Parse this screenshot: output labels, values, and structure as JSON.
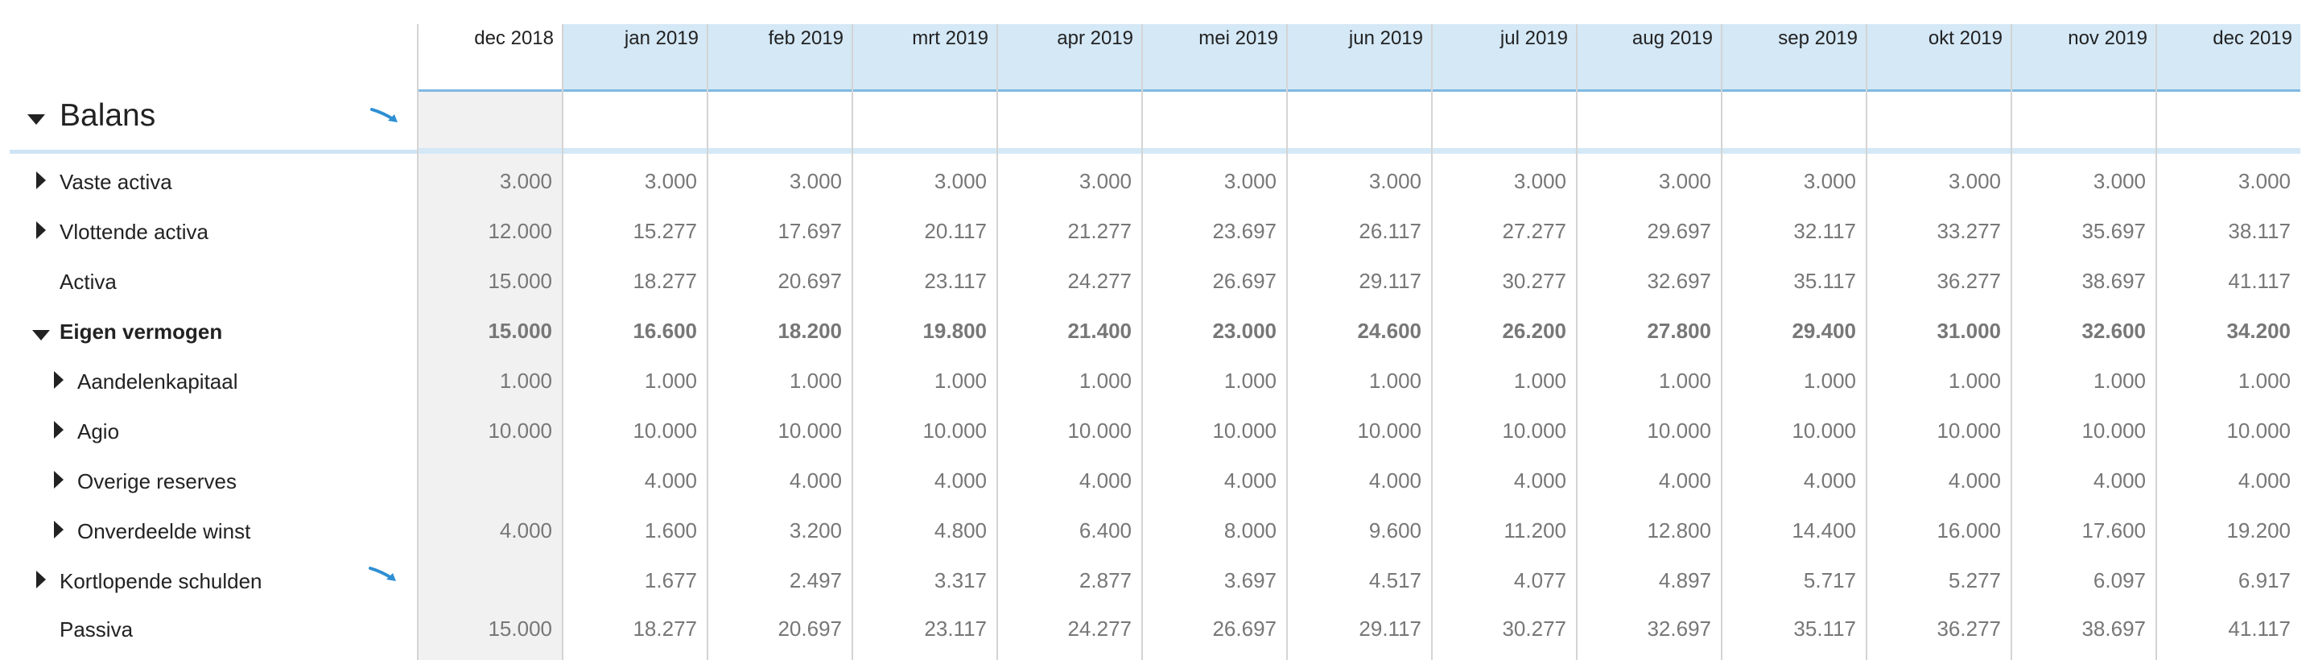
{
  "section": {
    "title": "Balans"
  },
  "months": [
    "dec 2018",
    "jan 2019",
    "feb 2019",
    "mrt 2019",
    "apr 2019",
    "mei 2019",
    "jun 2019",
    "jul 2019",
    "aug 2019",
    "sep 2019",
    "okt 2019",
    "nov 2019",
    "dec 2019"
  ],
  "accent": "#2f8fd3",
  "header_bg": "#d4e8f6",
  "rows": [
    {
      "label": "Vaste activa",
      "expander": "collapsed",
      "indent": 0,
      "bold": false,
      "trend": false,
      "values": [
        "3.000",
        "3.000",
        "3.000",
        "3.000",
        "3.000",
        "3.000",
        "3.000",
        "3.000",
        "3.000",
        "3.000",
        "3.000",
        "3.000",
        "3.000"
      ]
    },
    {
      "label": "Vlottende activa",
      "expander": "collapsed",
      "indent": 0,
      "bold": false,
      "trend": false,
      "values": [
        "12.000",
        "15.277",
        "17.697",
        "20.117",
        "21.277",
        "23.697",
        "26.117",
        "27.277",
        "29.697",
        "32.117",
        "33.277",
        "35.697",
        "38.117"
      ]
    },
    {
      "label": "Activa",
      "expander": "none",
      "indent": 0,
      "bold": false,
      "trend": false,
      "values": [
        "15.000",
        "18.277",
        "20.697",
        "23.117",
        "24.277",
        "26.697",
        "29.117",
        "30.277",
        "32.697",
        "35.117",
        "36.277",
        "38.697",
        "41.117"
      ]
    },
    {
      "label": "Eigen vermogen",
      "expander": "expanded",
      "indent": 0,
      "bold": true,
      "trend": false,
      "values": [
        "15.000",
        "16.600",
        "18.200",
        "19.800",
        "21.400",
        "23.000",
        "24.600",
        "26.200",
        "27.800",
        "29.400",
        "31.000",
        "32.600",
        "34.200"
      ]
    },
    {
      "label": "Aandelenkapitaal",
      "expander": "collapsed",
      "indent": 1,
      "bold": false,
      "trend": false,
      "values": [
        "1.000",
        "1.000",
        "1.000",
        "1.000",
        "1.000",
        "1.000",
        "1.000",
        "1.000",
        "1.000",
        "1.000",
        "1.000",
        "1.000",
        "1.000"
      ]
    },
    {
      "label": "Agio",
      "expander": "collapsed",
      "indent": 1,
      "bold": false,
      "trend": false,
      "values": [
        "10.000",
        "10.000",
        "10.000",
        "10.000",
        "10.000",
        "10.000",
        "10.000",
        "10.000",
        "10.000",
        "10.000",
        "10.000",
        "10.000",
        "10.000"
      ]
    },
    {
      "label": "Overige reserves",
      "expander": "collapsed",
      "indent": 1,
      "bold": false,
      "trend": false,
      "values": [
        "",
        "4.000",
        "4.000",
        "4.000",
        "4.000",
        "4.000",
        "4.000",
        "4.000",
        "4.000",
        "4.000",
        "4.000",
        "4.000",
        "4.000"
      ]
    },
    {
      "label": "Onverdeelde winst",
      "expander": "collapsed",
      "indent": 1,
      "bold": false,
      "trend": false,
      "values": [
        "4.000",
        "1.600",
        "3.200",
        "4.800",
        "6.400",
        "8.000",
        "9.600",
        "11.200",
        "12.800",
        "14.400",
        "16.000",
        "17.600",
        "19.200"
      ]
    },
    {
      "label": "Kortlopende schulden",
      "expander": "collapsed",
      "indent": 0,
      "bold": false,
      "trend": true,
      "values": [
        "",
        "1.677",
        "2.497",
        "3.317",
        "2.877",
        "3.697",
        "4.517",
        "4.077",
        "4.897",
        "5.717",
        "5.277",
        "6.097",
        "6.917"
      ]
    },
    {
      "label": "Passiva",
      "expander": "none",
      "indent": 0,
      "bold": false,
      "trend": false,
      "values": [
        "15.000",
        "18.277",
        "20.697",
        "23.117",
        "24.277",
        "26.697",
        "29.117",
        "30.277",
        "32.697",
        "35.117",
        "36.277",
        "38.697",
        "41.117"
      ]
    }
  ]
}
